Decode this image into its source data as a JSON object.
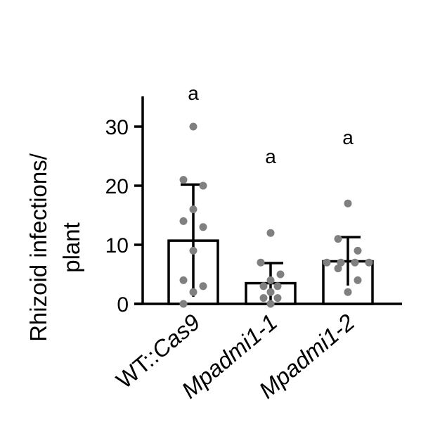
{
  "chart_data": {
    "type": "bar",
    "title": "",
    "ylabel_lines": [
      "Rhizoid infections/",
      "plant"
    ],
    "xlabel": "",
    "ylim": [
      0,
      35
    ],
    "yticks": [
      0,
      10,
      20,
      30
    ],
    "categories": [
      {
        "label": "WT::Cas9",
        "italic_part": "Cas9",
        "prefix": "WT::"
      },
      {
        "label": "Mpadmi1-1",
        "italic_part": "Mpadmi1-1",
        "prefix": ""
      },
      {
        "label": "Mpadmi1-2",
        "italic_part": "Mpadmi1-2",
        "prefix": ""
      }
    ],
    "values": [
      10.7,
      3.5,
      7.2
    ],
    "error_upper": [
      20.2,
      6.9,
      11.3
    ],
    "error_lower": [
      1.2,
      0.1,
      3.1
    ],
    "points": [
      [
        30,
        21,
        20,
        16,
        14,
        13,
        9,
        4,
        3,
        2,
        0
      ],
      [
        12,
        7,
        5,
        4,
        3,
        3,
        2,
        1,
        1,
        0
      ],
      [
        17,
        11,
        9,
        7,
        7,
        7,
        7,
        6,
        4,
        2
      ]
    ],
    "significance": [
      "a",
      "a",
      "a"
    ],
    "grid": false,
    "legend": "none",
    "colors": {
      "points": "#808080",
      "bars": "#ffffff",
      "axes": "#000000"
    }
  }
}
